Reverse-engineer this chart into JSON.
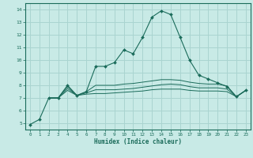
{
  "xlabel": "Humidex (Indice chaleur)",
  "bg_color": "#c8eae6",
  "grid_color": "#aad4d0",
  "line_color": "#1a6b5a",
  "xlim": [
    -0.5,
    23.5
  ],
  "ylim": [
    4.5,
    14.5
  ],
  "xticks": [
    0,
    1,
    2,
    3,
    4,
    5,
    6,
    7,
    8,
    9,
    10,
    11,
    12,
    13,
    14,
    15,
    16,
    17,
    18,
    19,
    20,
    21,
    22,
    23
  ],
  "yticks": [
    5,
    6,
    7,
    8,
    9,
    10,
    11,
    12,
    13,
    14
  ],
  "main_x": [
    0,
    1,
    2,
    3,
    4,
    5,
    6,
    7,
    8,
    9,
    10,
    11,
    12,
    13,
    14,
    15,
    16,
    17,
    18,
    19,
    20,
    21,
    22,
    23
  ],
  "main_y": [
    4.9,
    5.3,
    7.0,
    7.0,
    8.0,
    7.2,
    7.5,
    9.5,
    9.5,
    9.8,
    10.8,
    10.5,
    11.8,
    13.4,
    13.9,
    13.6,
    11.8,
    10.0,
    8.8,
    8.5,
    8.2,
    7.9,
    7.1,
    7.6
  ],
  "line2_x": [
    2,
    3,
    4,
    5,
    6,
    7,
    8,
    9,
    10,
    11,
    12,
    13,
    14,
    15,
    16,
    17,
    18,
    19,
    20,
    21,
    22,
    23
  ],
  "line2_y": [
    7.0,
    7.0,
    7.9,
    7.2,
    7.5,
    8.0,
    8.0,
    8.0,
    8.1,
    8.15,
    8.25,
    8.35,
    8.45,
    8.45,
    8.4,
    8.25,
    8.15,
    8.1,
    8.1,
    7.95,
    7.1,
    7.6
  ],
  "line3_x": [
    2,
    3,
    4,
    5,
    6,
    7,
    8,
    9,
    10,
    11,
    12,
    13,
    14,
    15,
    16,
    17,
    18,
    19,
    20,
    21,
    22,
    23
  ],
  "line3_y": [
    7.0,
    7.0,
    7.75,
    7.2,
    7.4,
    7.65,
    7.65,
    7.65,
    7.7,
    7.75,
    7.85,
    7.95,
    8.05,
    8.1,
    8.05,
    7.9,
    7.8,
    7.8,
    7.8,
    7.7,
    7.1,
    7.6
  ],
  "line4_x": [
    2,
    3,
    4,
    5,
    6,
    7,
    8,
    9,
    10,
    11,
    12,
    13,
    14,
    15,
    16,
    17,
    18,
    19,
    20,
    21,
    22,
    23
  ],
  "line4_y": [
    7.0,
    7.0,
    7.6,
    7.2,
    7.3,
    7.35,
    7.35,
    7.4,
    7.45,
    7.5,
    7.55,
    7.65,
    7.7,
    7.7,
    7.7,
    7.6,
    7.55,
    7.55,
    7.55,
    7.5,
    7.1,
    7.6
  ]
}
